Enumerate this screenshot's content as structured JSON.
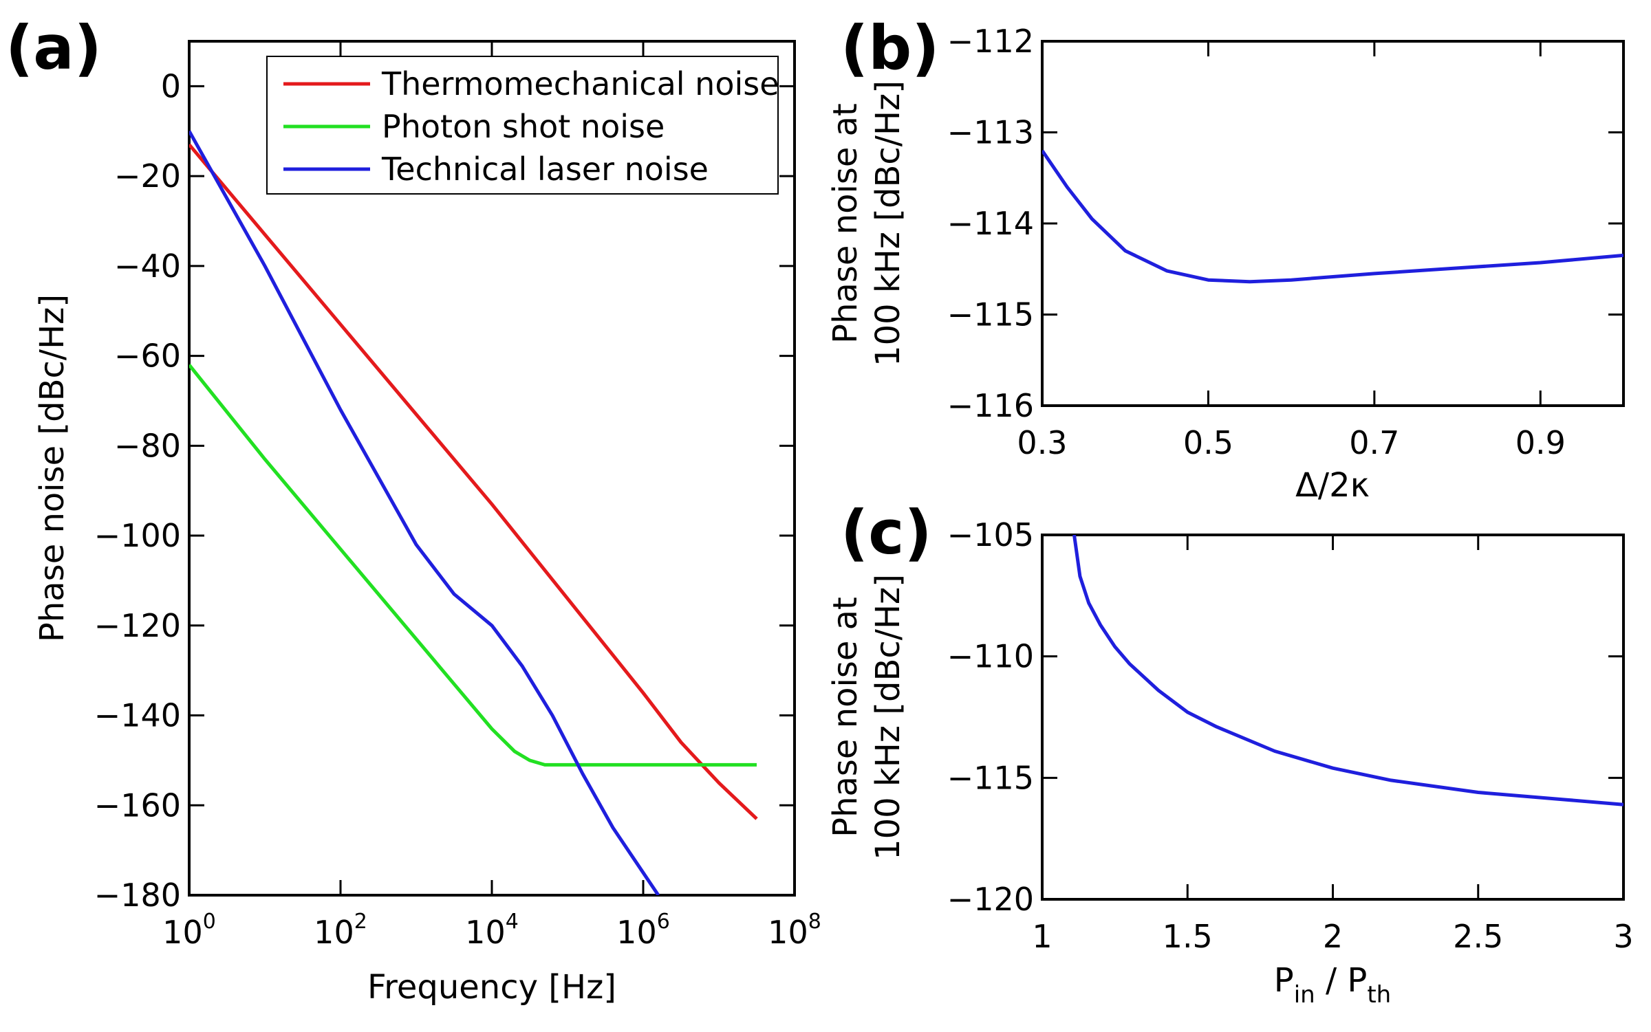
{
  "chart_data": [
    {
      "panel": "(a)",
      "type": "line",
      "xscale": "log",
      "xlabel": "Frequency [Hz]",
      "ylabel": "Phase noise [dBc/Hz]",
      "xlim_exp": [
        0,
        8
      ],
      "ylim": [
        -180,
        10
      ],
      "xtick_exp": [
        0,
        2,
        4,
        6,
        8
      ],
      "xtick_base": "10",
      "ytick_labels": [
        "0",
        "−20",
        "−40",
        "−60",
        "−80",
        "−100",
        "−120",
        "−140",
        "−160",
        "−180"
      ],
      "yticks": [
        0,
        -20,
        -40,
        -60,
        -80,
        -100,
        -120,
        -140,
        -160,
        -180
      ],
      "legend_position": "top-right",
      "series": [
        {
          "name": "Thermomechanical noise",
          "color": "#e41a1c",
          "log10_x": [
            0,
            1,
            2,
            3,
            4,
            5,
            6,
            6.5,
            7,
            7.5
          ],
          "y": [
            -13,
            -33,
            -53,
            -73,
            -93,
            -114,
            -135,
            -146,
            -155,
            -163
          ]
        },
        {
          "name": "Photon shot noise",
          "color": "#22e022",
          "log10_x": [
            0,
            1,
            2,
            3,
            3.5,
            4,
            4.3,
            4.5,
            4.7,
            5,
            5.5,
            6,
            7,
            7.5
          ],
          "y": [
            -62,
            -83,
            -103,
            -123,
            -133,
            -143,
            -148,
            -150,
            -151,
            -151,
            -151,
            -151,
            -151,
            -151
          ]
        },
        {
          "name": "Technical laser noise",
          "color": "#1f1fdd",
          "log10_x": [
            0,
            1,
            2,
            3,
            3.5,
            4,
            4.4,
            4.8,
            5.2,
            5.6,
            6,
            6.2
          ],
          "y": [
            -10,
            -40,
            -72,
            -102,
            -113,
            -120,
            -129,
            -140,
            -153,
            -165,
            -175,
            -180
          ]
        }
      ]
    },
    {
      "panel": "(b)",
      "type": "line",
      "xlabel": "Δ/2κ",
      "ylabel_line1": "Phase noise at",
      "ylabel_line2": "100 kHz [dBc/Hz]",
      "xlim": [
        0.3,
        1.0
      ],
      "ylim": [
        -116,
        -112
      ],
      "xticks": [
        0.3,
        0.5,
        0.7,
        0.9
      ],
      "xtick_labels": [
        "0.3",
        "0.5",
        "0.7",
        "0.9"
      ],
      "yticks": [
        -112,
        -113,
        -114,
        -115,
        -116
      ],
      "ytick_labels": [
        "−112",
        "−113",
        "−114",
        "−115",
        "−116"
      ],
      "series": [
        {
          "name": "phase noise vs detuning",
          "color": "#1f1fdd",
          "x": [
            0.3,
            0.33,
            0.36,
            0.4,
            0.45,
            0.5,
            0.55,
            0.6,
            0.7,
            0.8,
            0.9,
            1.0
          ],
          "y": [
            -113.2,
            -113.6,
            -113.95,
            -114.3,
            -114.52,
            -114.62,
            -114.64,
            -114.62,
            -114.55,
            -114.49,
            -114.43,
            -114.35
          ]
        }
      ]
    },
    {
      "panel": "(c)",
      "type": "line",
      "xlabel_main": "P",
      "xlabel_sub1": "in",
      "xlabel_sep": " / P",
      "xlabel_sub2": "th",
      "ylabel_line1": "Phase noise at",
      "ylabel_line2": "100 kHz [dBc/Hz]",
      "xlim": [
        1,
        3
      ],
      "ylim": [
        -120,
        -105
      ],
      "xticks": [
        1,
        1.5,
        2,
        2.5,
        3
      ],
      "xtick_labels": [
        "1",
        "1.5",
        "2",
        "2.5",
        "3"
      ],
      "yticks": [
        -105,
        -110,
        -115,
        -120
      ],
      "ytick_labels": [
        "−105",
        "−110",
        "−115",
        "−120"
      ],
      "series": [
        {
          "name": "phase noise vs pump power",
          "color": "#1f1fdd",
          "x": [
            1.11,
            1.13,
            1.16,
            1.2,
            1.25,
            1.3,
            1.4,
            1.5,
            1.6,
            1.8,
            2.0,
            2.2,
            2.5,
            2.8,
            3.0
          ],
          "y": [
            -105,
            -106.7,
            -107.8,
            -108.7,
            -109.6,
            -110.3,
            -111.4,
            -112.3,
            -112.9,
            -113.9,
            -114.6,
            -115.1,
            -115.6,
            -115.9,
            -116.1
          ]
        }
      ]
    }
  ]
}
